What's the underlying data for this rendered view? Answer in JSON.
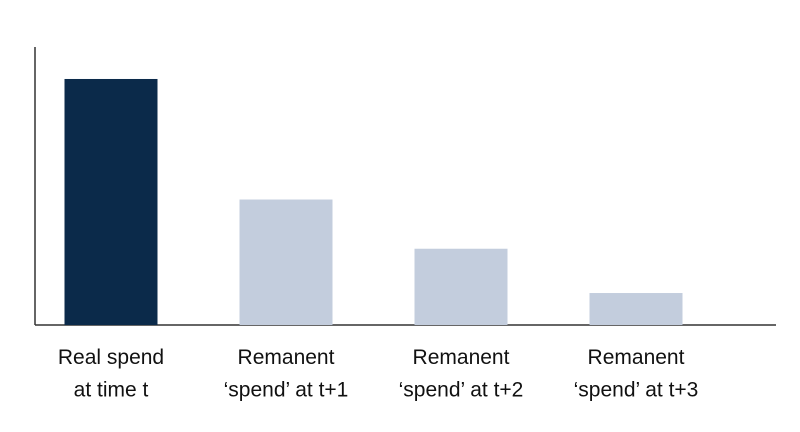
{
  "chart_data": {
    "type": "bar",
    "categories": [
      "Real spend\nat time t",
      "Remanent\n‘spend’ at t+1",
      "Remanent\n‘spend’ at t+2",
      "Remanent\n‘spend’ at t+3"
    ],
    "values": [
      100,
      51,
      31,
      13
    ],
    "colors": [
      "#0b2a4a",
      "#c3cddd",
      "#c3cddd",
      "#c3cddd"
    ],
    "ylim": [
      0,
      113
    ]
  }
}
